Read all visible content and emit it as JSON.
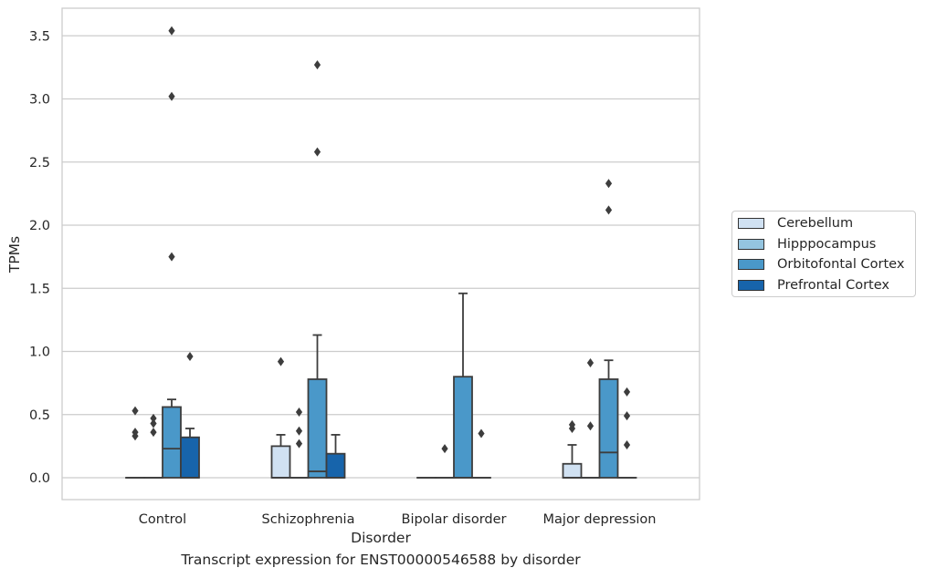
{
  "caption": "Transcript expression for ENST00000546588 by disorder",
  "chart_data": {
    "type": "box",
    "xlabel": "Disorder",
    "ylabel": "TPMs",
    "ylim": [
      -0.17,
      3.72
    ],
    "yticks": [
      "0.0",
      "0.5",
      "1.0",
      "1.5",
      "2.0",
      "2.5",
      "3.0",
      "3.5"
    ],
    "grid": "horizontal",
    "legend_placement": "center-right",
    "categories": [
      "Control",
      "Schizophrenia",
      "Bipolar disorder",
      "Major depression"
    ],
    "series": [
      {
        "name": "Cerebellum",
        "color": "#d0e1f2",
        "boxes": [
          {
            "q1": 0,
            "median": 0,
            "q3": 0,
            "whisker_low": 0,
            "whisker_high": 0,
            "outliers": [
              0.33,
              0.36,
              0.53
            ]
          },
          {
            "q1": 0,
            "median": 0,
            "q3": 0.25,
            "whisker_low": 0,
            "whisker_high": 0.34,
            "outliers": [
              0.92
            ]
          },
          {
            "q1": 0,
            "median": 0,
            "q3": 0,
            "whisker_low": 0,
            "whisker_high": 0,
            "outliers": []
          },
          {
            "q1": 0,
            "median": 0,
            "q3": 0.11,
            "whisker_low": 0,
            "whisker_high": 0.26,
            "outliers": [
              0.39,
              0.42
            ]
          }
        ]
      },
      {
        "name": "Hipppocampus",
        "color": "#94c4df",
        "boxes": [
          {
            "q1": 0,
            "median": 0,
            "q3": 0,
            "whisker_low": 0,
            "whisker_high": 0,
            "outliers": [
              0.36,
              0.43,
              0.47
            ]
          },
          {
            "q1": 0,
            "median": 0,
            "q3": 0,
            "whisker_low": 0,
            "whisker_high": 0,
            "outliers": [
              0.27,
              0.37,
              0.52
            ]
          },
          {
            "q1": 0,
            "median": 0,
            "q3": 0,
            "whisker_low": 0,
            "whisker_high": 0,
            "outliers": [
              0.23
            ]
          },
          {
            "q1": 0,
            "median": 0,
            "q3": 0,
            "whisker_low": 0,
            "whisker_high": 0,
            "outliers": [
              0.41,
              0.91
            ]
          }
        ]
      },
      {
        "name": "Orbitofontal Cortex",
        "color": "#4a98c9",
        "boxes": [
          {
            "q1": 0,
            "median": 0.23,
            "q3": 0.56,
            "whisker_low": 0,
            "whisker_high": 0.62,
            "outliers": [
              1.75,
              3.02,
              3.54
            ]
          },
          {
            "q1": 0,
            "median": 0.05,
            "q3": 0.78,
            "whisker_low": 0,
            "whisker_high": 1.13,
            "outliers": [
              2.58,
              3.27
            ]
          },
          {
            "q1": 0,
            "median": 0,
            "q3": 0.8,
            "whisker_low": 0,
            "whisker_high": 1.46,
            "outliers": []
          },
          {
            "q1": 0,
            "median": 0.2,
            "q3": 0.78,
            "whisker_low": 0,
            "whisker_high": 0.93,
            "outliers": [
              2.12,
              2.33
            ]
          }
        ]
      },
      {
        "name": "Prefrontal Cortex",
        "color": "#1764ab",
        "boxes": [
          {
            "q1": 0,
            "median": 0,
            "q3": 0.32,
            "whisker_low": 0,
            "whisker_high": 0.39,
            "outliers": [
              0.96
            ]
          },
          {
            "q1": 0,
            "median": 0,
            "q3": 0.19,
            "whisker_low": 0,
            "whisker_high": 0.34,
            "outliers": []
          },
          {
            "q1": 0,
            "median": 0,
            "q3": 0,
            "whisker_low": 0,
            "whisker_high": 0,
            "outliers": [
              0.35
            ]
          },
          {
            "q1": 0,
            "median": 0,
            "q3": 0,
            "whisker_low": 0,
            "whisker_high": 0,
            "outliers": [
              0.26,
              0.49,
              0.68
            ]
          }
        ]
      }
    ]
  }
}
